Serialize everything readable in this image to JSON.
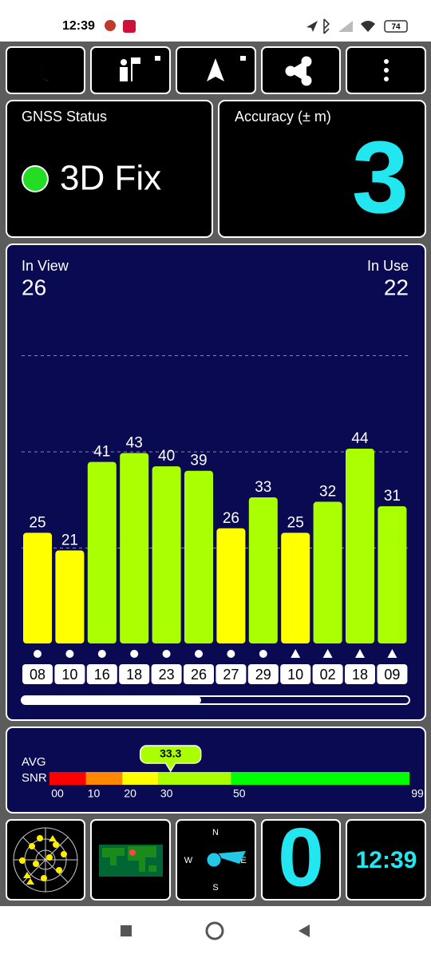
{
  "status_bar": {
    "time": "12:39",
    "battery": "74"
  },
  "gnss_status": {
    "label": "GNSS Status",
    "value": "3D Fix"
  },
  "accuracy": {
    "label": "Accuracy (± m)",
    "value": 3
  },
  "in_view": {
    "label": "In View",
    "value": 26
  },
  "in_use": {
    "label": "In Use",
    "value": 22
  },
  "snr_chart": {
    "ylim": [
      0,
      65
    ],
    "satellites": [
      {
        "id": "08",
        "snr": 25,
        "marker": "circle",
        "color": "#ffff00"
      },
      {
        "id": "10",
        "snr": 21,
        "marker": "circle",
        "color": "#ffff00"
      },
      {
        "id": "16",
        "snr": 41,
        "marker": "circle",
        "color": "#aaff00"
      },
      {
        "id": "18",
        "snr": 43,
        "marker": "circle",
        "color": "#aaff00"
      },
      {
        "id": "23",
        "snr": 40,
        "marker": "circle",
        "color": "#aaff00"
      },
      {
        "id": "26",
        "snr": 39,
        "marker": "circle",
        "color": "#aaff00"
      },
      {
        "id": "27",
        "snr": 26,
        "marker": "circle",
        "color": "#ffff00"
      },
      {
        "id": "29",
        "snr": 33,
        "marker": "circle",
        "color": "#aaff00"
      },
      {
        "id": "10",
        "snr": 25,
        "marker": "triangle",
        "color": "#ffff00"
      },
      {
        "id": "02",
        "snr": 32,
        "marker": "triangle",
        "color": "#aaff00"
      },
      {
        "id": "18",
        "snr": 44,
        "marker": "triangle",
        "color": "#aaff00"
      },
      {
        "id": "09",
        "snr": 31,
        "marker": "triangle",
        "color": "#aaff00"
      }
    ]
  },
  "avg_snr": {
    "label_1": "AVG",
    "label_2": "SNR",
    "value": 33.3,
    "xlim": [
      0,
      99
    ],
    "ticks": [
      {
        "value": 0,
        "label": "00"
      },
      10,
      20,
      30,
      50,
      99
    ],
    "segments": [
      {
        "from": 0,
        "to": 10,
        "color": "#ff0000"
      },
      {
        "from": 10,
        "to": 20,
        "color": "#ff8800"
      },
      {
        "from": 20,
        "to": 30,
        "color": "#ffff00"
      },
      {
        "from": 30,
        "to": 50,
        "color": "#aaff00"
      },
      {
        "from": 50,
        "to": 99,
        "color": "#00ff00"
      }
    ]
  },
  "compass": {
    "north": "N",
    "east": "E",
    "south": "S",
    "west": "W"
  },
  "speed": {
    "value": 0
  },
  "clock": {
    "value": "12:39"
  }
}
